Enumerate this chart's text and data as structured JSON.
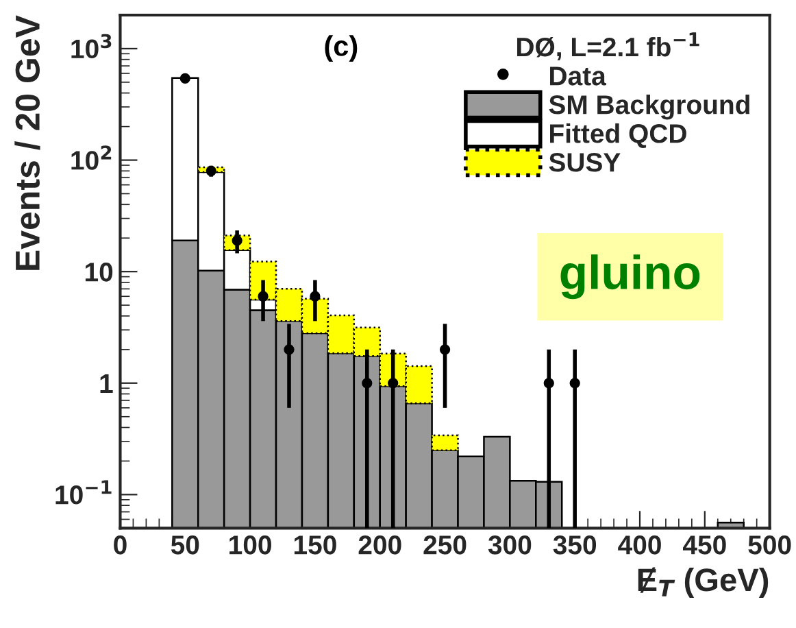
{
  "chart_data": {
    "type": "bar",
    "stacked": true,
    "log": "y",
    "xlabel": "Ɇ$_{T}$ (GeV)",
    "ylabel": "Events / 20 GeV",
    "legend_title": "DØ, L=2.1 fb$^{−1}$",
    "x": [
      50,
      70,
      90,
      110,
      130,
      150,
      170,
      190,
      210,
      230,
      250,
      270,
      290,
      310,
      330,
      350,
      370,
      390,
      410,
      430,
      450,
      470
    ],
    "series": [
      {
        "name": "SM Background",
        "color": "#999999",
        "line_style": "solid",
        "values": [
          19,
          10.2,
          6.9,
          4.5,
          3.6,
          2.8,
          1.85,
          1.75,
          0.94,
          0.66,
          0.25,
          0.22,
          0.33,
          0.133,
          0.13,
          null,
          null,
          null,
          null,
          null,
          null,
          0.056
        ]
      },
      {
        "name": "Fitted QCD",
        "color": "#ffffff",
        "line_style": "solid",
        "values": [
          526,
          68,
          8.7,
          1.1,
          null,
          null,
          null,
          null,
          null,
          null,
          null,
          null,
          null,
          null,
          null,
          null,
          null,
          null,
          null,
          null,
          null,
          null
        ]
      },
      {
        "name": "SUSY",
        "color": "#ffff00",
        "line_style": "dotted",
        "values": [
          null,
          8,
          5.5,
          6.7,
          3.4,
          2.9,
          2.2,
          1.4,
          0.9,
          0.76,
          0.09,
          null,
          null,
          null,
          null,
          null,
          null,
          null,
          null,
          null,
          null,
          null
        ]
      },
      {
        "name": "Data",
        "type": "scatter",
        "color": "#000000",
        "marker": "circle",
        "x": [
          50,
          70,
          90,
          110,
          130,
          150,
          190,
          210,
          250,
          330,
          350
        ],
        "values": [
          540,
          80,
          19,
          6,
          2,
          6,
          1,
          1,
          2,
          1,
          1
        ],
        "errors": [
          23,
          9,
          4.4,
          2.4,
          1.4,
          2.4,
          [
            0.05,
            2
          ],
          [
            0.05,
            2
          ],
          1.4,
          [
            0.05,
            2
          ],
          [
            0.05,
            2
          ]
        ]
      }
    ],
    "xlim": [
      0,
      500
    ],
    "xticks": [
      0,
      50,
      100,
      150,
      200,
      250,
      300,
      350,
      400,
      450,
      500
    ],
    "ylim": [
      0.05,
      2000
    ],
    "yticks": [
      {
        "value": 0.1,
        "label": "10$^{−1}$"
      },
      1,
      10,
      {
        "value": 100,
        "label": "10$^{2}$"
      },
      {
        "value": 1000,
        "label": "10$^{3}$"
      }
    ],
    "grid": false,
    "legend": "top right",
    "annotations": [
      "(c)",
      "gluino"
    ]
  }
}
